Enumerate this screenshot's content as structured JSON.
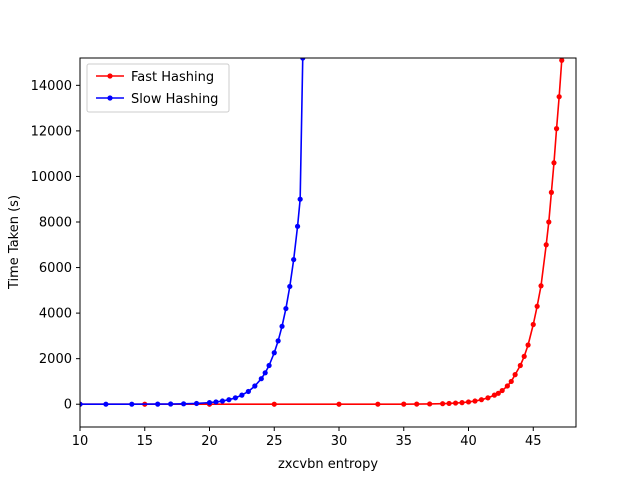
{
  "chart_data": {
    "type": "line",
    "title": "",
    "xlabel": "zxcvbn entropy",
    "ylabel": "Time Taken (s)",
    "xlim": [
      10,
      48.3
    ],
    "ylim": [
      -1000,
      15200
    ],
    "xticks": [
      10,
      15,
      20,
      25,
      30,
      35,
      40,
      45
    ],
    "yticks": [
      0,
      2000,
      4000,
      6000,
      8000,
      10000,
      12000,
      14000
    ],
    "grid": false,
    "legend_position": "top-left",
    "series": [
      {
        "name": "Fast Hashing",
        "color": "#ff0000",
        "x": [
          10,
          15,
          20,
          25,
          30,
          33,
          35,
          36,
          37,
          38,
          38.5,
          39,
          39.5,
          40,
          40.5,
          41,
          41.5,
          42,
          42.3,
          42.6,
          43,
          43.3,
          43.6,
          44,
          44.3,
          44.6,
          45,
          45.3,
          45.6,
          46,
          46.2,
          46.4,
          46.6,
          46.8,
          47,
          47.2
        ],
        "y": [
          0,
          0,
          0,
          0,
          0,
          1,
          3,
          6,
          12,
          24,
          35,
          50,
          70,
          100,
          140,
          200,
          280,
          400,
          480,
          600,
          800,
          1000,
          1300,
          1700,
          2100,
          2600,
          3500,
          4300,
          5200,
          7000,
          8000,
          9300,
          10600,
          12100,
          13500,
          15100
        ]
      },
      {
        "name": "Slow Hashing",
        "color": "#0000ff",
        "x": [
          10,
          12,
          14,
          16,
          17,
          18,
          19,
          20,
          20.5,
          21,
          21.5,
          22,
          22.5,
          23,
          23.5,
          24,
          24.3,
          24.6,
          25,
          25.3,
          25.6,
          25.9,
          26.2,
          26.5,
          26.8,
          27.0,
          27.2
        ],
        "y": [
          0,
          1,
          2,
          5,
          9,
          17,
          33,
          70,
          100,
          140,
          200,
          280,
          400,
          560,
          800,
          1120,
          1380,
          1700,
          2260,
          2780,
          3420,
          4200,
          5170,
          6350,
          7810,
          9000,
          15200
        ]
      }
    ]
  }
}
